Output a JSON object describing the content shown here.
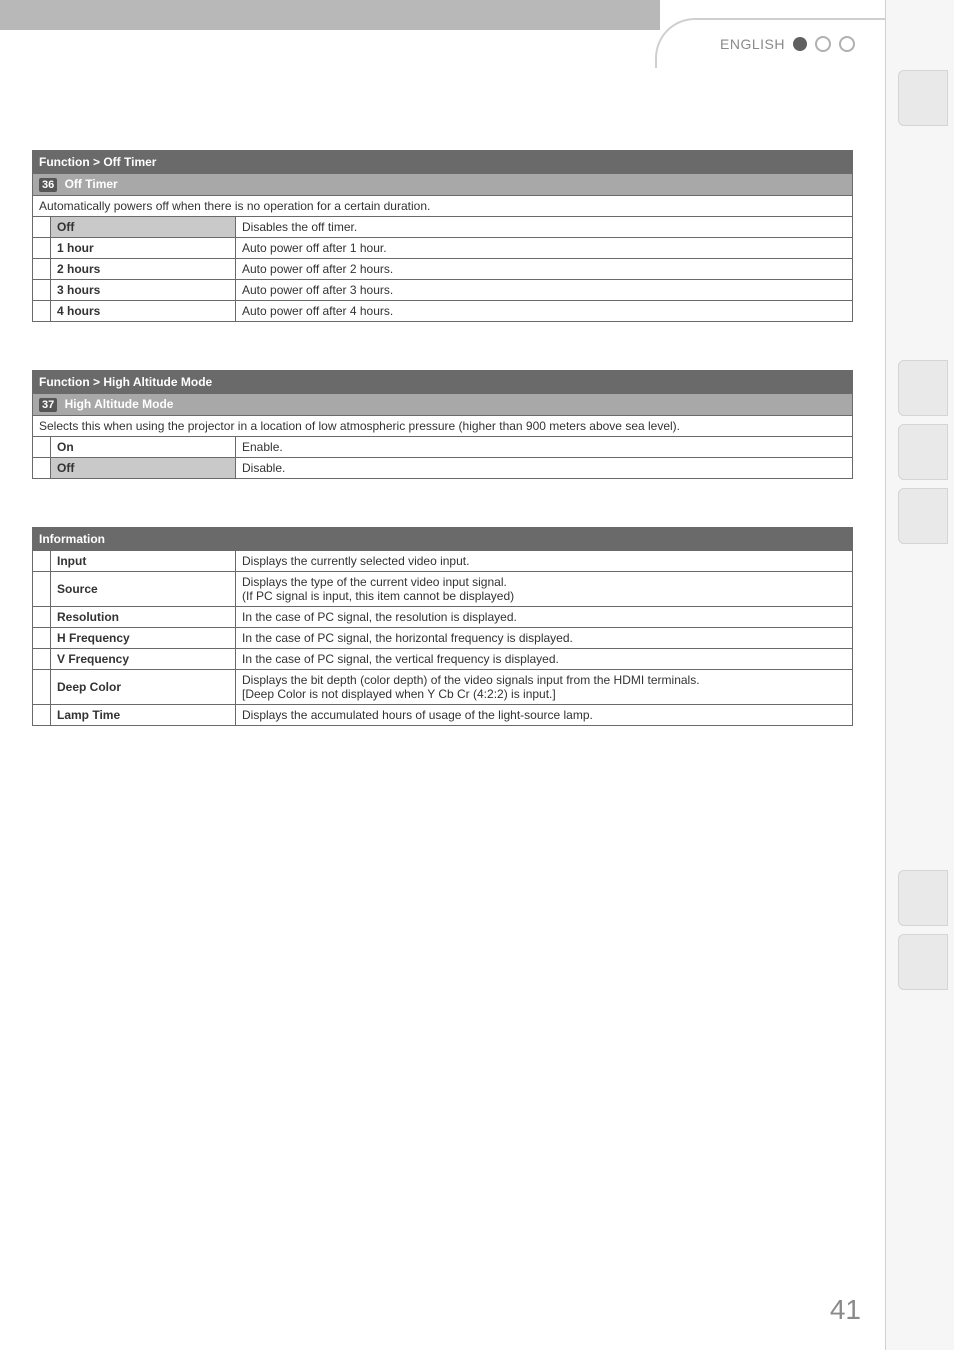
{
  "header": {
    "language": "ENGLISH"
  },
  "page_number": "41",
  "section1": {
    "breadcrumb": "Function > Off Timer",
    "num": "36",
    "title": "Off Timer",
    "description": "Automatically powers off when there is no operation for a certain duration.",
    "rows": [
      {
        "label": "Off",
        "shaded": true,
        "value": "Disables the off timer."
      },
      {
        "label": "1 hour",
        "shaded": false,
        "value": "Auto power off after 1 hour."
      },
      {
        "label": "2 hours",
        "shaded": false,
        "value": "Auto power off after 2 hours."
      },
      {
        "label": "3 hours",
        "shaded": false,
        "value": "Auto power off after 3 hours."
      },
      {
        "label": "4 hours",
        "shaded": false,
        "value": "Auto power off after 4 hours."
      }
    ]
  },
  "section2": {
    "breadcrumb": "Function > High Altitude Mode",
    "num": "37",
    "title": "High Altitude Mode",
    "description": "Selects this when using the projector in a location of low atmospheric pressure (higher than 900 meters above sea level).",
    "rows": [
      {
        "label": "On",
        "shaded": false,
        "value": "Enable."
      },
      {
        "label": "Off",
        "shaded": true,
        "value": "Disable."
      }
    ]
  },
  "section3": {
    "breadcrumb": "Information",
    "rows": [
      {
        "label": "Input",
        "value": "Displays the currently selected video input."
      },
      {
        "label": "Source",
        "value": "Displays the type of the current video input signal.\n(If PC signal is input, this item cannot be displayed)"
      },
      {
        "label": "Resolution",
        "value": "In the case of PC signal, the resolution is displayed."
      },
      {
        "label": "H Frequency",
        "value": "In the case of PC signal, the horizontal frequency is displayed."
      },
      {
        "label": "V Frequency",
        "value": "In the case of PC signal, the vertical frequency is displayed."
      },
      {
        "label": "Deep Color",
        "value": "Displays the bit depth (color depth) of the video signals input from the HDMI terminals.\n[Deep Color is not displayed when Y Cb Cr (4:2:2) is input.]"
      },
      {
        "label": "Lamp Time",
        "value": "Displays the accumulated hours of usage of the light-source lamp."
      }
    ]
  }
}
